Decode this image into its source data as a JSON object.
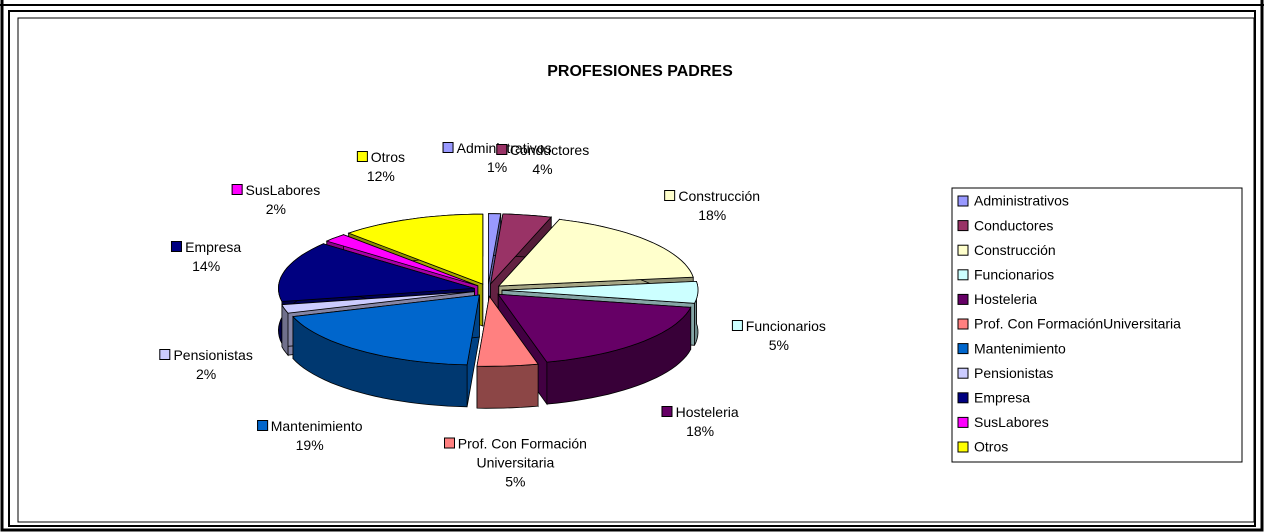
{
  "chart_data": {
    "type": "pie3d",
    "title": "PROFESIONES PADRES",
    "categories": [
      "Administrativos",
      "Conductores",
      "Construcción",
      "Funcionarios",
      "Hosteleria",
      "Prof. Con FormaciónUniversitaria",
      "Mantenimiento",
      "Pensionistas",
      "Empresa",
      "SusLabores",
      "Otros"
    ],
    "label_names": [
      "Administrativos",
      "Conductores",
      "Construcción",
      "Funcionarios",
      "Hosteleria",
      "Prof. Con Formación Universitaria",
      "Mantenimiento",
      "Pensionistas",
      "Empresa",
      "SusLabores",
      "Otros"
    ],
    "values": [
      1,
      4,
      18,
      5,
      18,
      5,
      19,
      2,
      14,
      2,
      12
    ],
    "value_labels": [
      "1%",
      "4%",
      "18%",
      "5%",
      "18%",
      "5%",
      "19%",
      "2%",
      "14%",
      "2%",
      "12%"
    ],
    "colors": [
      "#9999ff",
      "#993366",
      "#ffffcc",
      "#ccffff",
      "#660066",
      "#ff8080",
      "#0066cc",
      "#ccccff",
      "#000080",
      "#ff00ff",
      "#ffff00"
    ],
    "legend": "right"
  }
}
